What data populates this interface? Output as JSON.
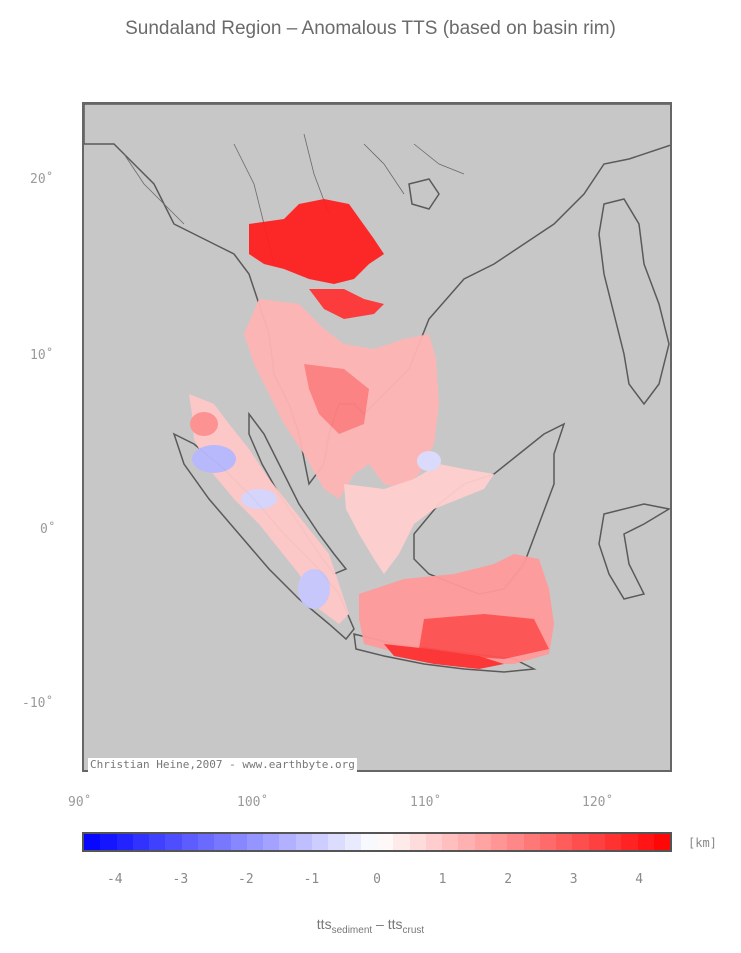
{
  "title": "Sundaland Region – Anomalous TTS (based on basin rim)",
  "credit": "Christian Heine,2007 - www.earthbyte.org",
  "map": {
    "lon_range": [
      90,
      124
    ],
    "lat_range": [
      -14,
      24
    ],
    "lon_ticks": [
      "90˚",
      "100˚",
      "110˚",
      "120˚"
    ],
    "lat_ticks": [
      "20˚",
      "10˚",
      "0˚",
      "-10˚"
    ],
    "background_color": "#c7c7c7",
    "coastline_color": "#5a5a5a"
  },
  "colorbar": {
    "unit": "[km]",
    "range": [
      -4.5,
      4.5
    ],
    "labels": [
      "-4",
      "-3",
      "-2",
      "-1",
      "0",
      "1",
      "2",
      "3",
      "4"
    ],
    "low_color": "#0000ff",
    "mid_color": "#ffffff",
    "high_color": "#ff0000"
  },
  "axis_title": {
    "main": "tts",
    "sub1": "sediment",
    "sep": " – tts",
    "sub2": "crust"
  }
}
